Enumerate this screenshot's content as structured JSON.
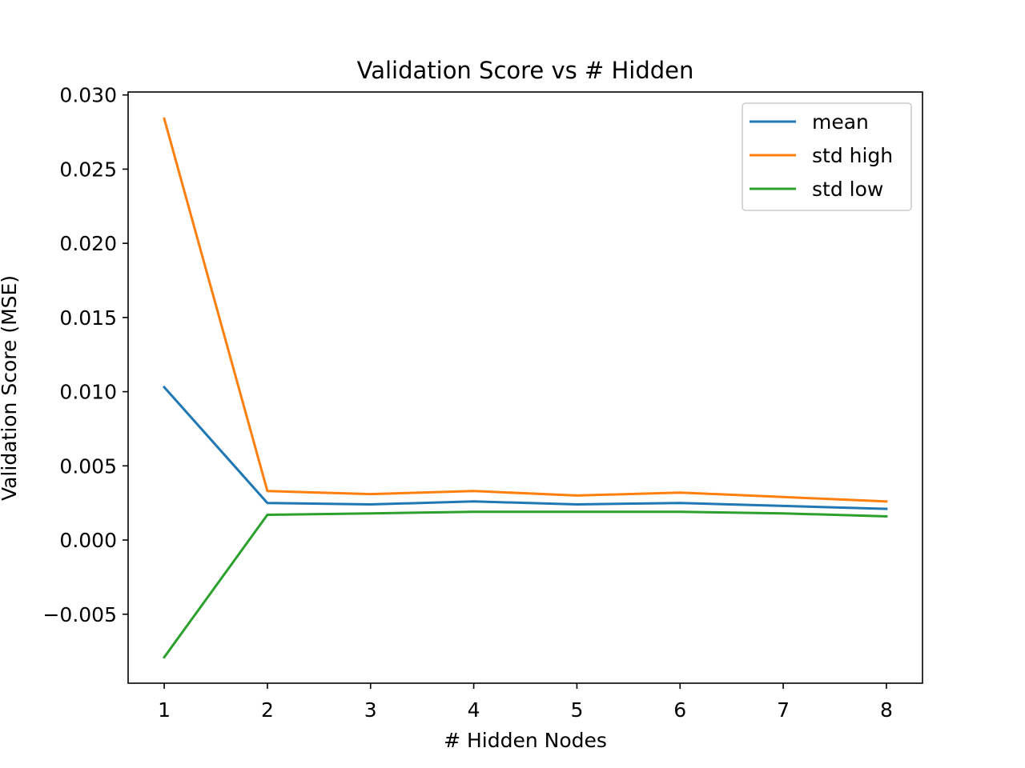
{
  "chart_data": {
    "type": "line",
    "title": "Validation Score vs # Hidden",
    "xlabel": "# Hidden Nodes",
    "ylabel": "Validation Score (MSE)",
    "x": [
      1,
      2,
      3,
      4,
      5,
      6,
      7,
      8
    ],
    "x_ticks": [
      1,
      2,
      3,
      4,
      5,
      6,
      7,
      8
    ],
    "y_ticks": [
      -0.005,
      0.0,
      0.005,
      0.01,
      0.015,
      0.02,
      0.025,
      0.03
    ],
    "y_tick_labels": [
      "−0.005",
      "0.000",
      "0.005",
      "0.010",
      "0.015",
      "0.020",
      "0.025",
      "0.030"
    ],
    "xlim": [
      0.65,
      8.35
    ],
    "ylim": [
      -0.00965,
      0.0302
    ],
    "grid": false,
    "legend_position": "top-right",
    "series": [
      {
        "name": "mean",
        "color": "#1f77b4",
        "values": [
          0.0103,
          0.0025,
          0.0024,
          0.0026,
          0.0024,
          0.0025,
          0.0023,
          0.0021
        ]
      },
      {
        "name": "std high",
        "color": "#ff7f0e",
        "values": [
          0.0284,
          0.0033,
          0.0031,
          0.0033,
          0.003,
          0.0032,
          0.0029,
          0.0026
        ]
      },
      {
        "name": "std low",
        "color": "#2ca02c",
        "values": [
          -0.0079,
          0.0017,
          0.0018,
          0.0019,
          0.0019,
          0.0019,
          0.0018,
          0.0016
        ]
      }
    ]
  }
}
